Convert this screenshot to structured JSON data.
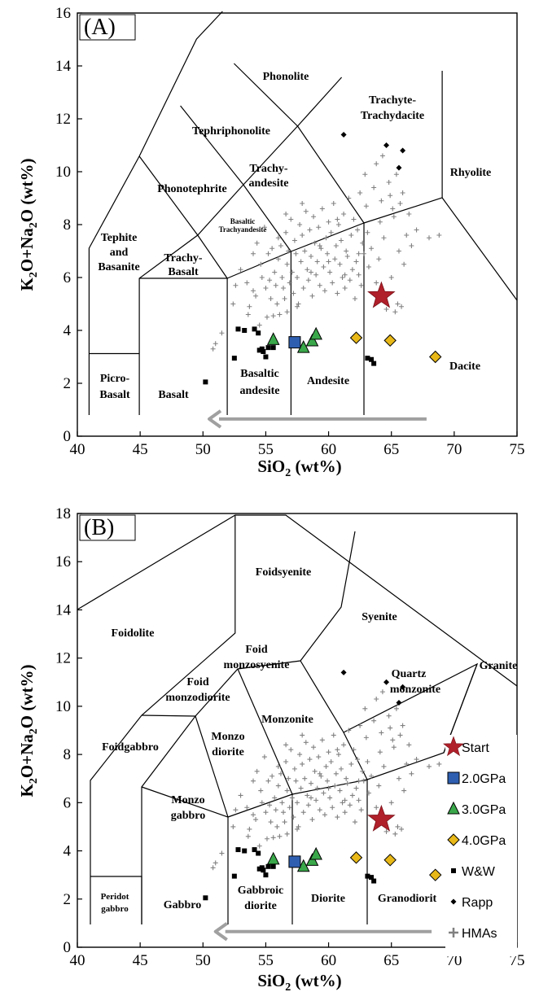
{
  "chart_data": [
    {
      "type": "scatter",
      "panel_label": "(A)",
      "xlabel": "SiO2 (wt%)",
      "ylabel": "K2O+Na2O (wt%)",
      "xlim": [
        40,
        75
      ],
      "ylim": [
        0,
        16
      ],
      "xticks": [
        40,
        45,
        50,
        55,
        60,
        65,
        70,
        75
      ],
      "yticks": [
        0,
        2,
        4,
        6,
        8,
        10,
        12,
        14,
        16
      ],
      "field_labels": [
        "Phonolite",
        "Trachyte-",
        "Trachydacite",
        "Tephriphonolite",
        "Rhyolite",
        "Phonotephrite",
        "Trachy-",
        "andesite",
        "Basaltic",
        "Trachyandesite",
        "Tephite",
        "and",
        "Basanite",
        "Trachy-",
        "Basalt",
        "Basaltic",
        "andesite",
        "Andesite",
        "Dacite",
        "Picro-",
        "Basalt",
        "Basalt"
      ],
      "arrow": {
        "from": [
          67.8,
          0.65
        ],
        "to": [
          50.5,
          0.65
        ]
      }
    },
    {
      "type": "scatter",
      "panel_label": "(B)",
      "xlabel": "SiO2 (wt%)",
      "ylabel": "K2O+Na2O (wt%)",
      "xlim": [
        40,
        75
      ],
      "ylim": [
        0,
        18
      ],
      "xticks": [
        40,
        45,
        50,
        55,
        60,
        65,
        70,
        75
      ],
      "yticks": [
        0,
        2,
        4,
        6,
        8,
        10,
        12,
        14,
        16,
        18
      ],
      "field_labels": [
        "Foidsyenite",
        "Foidolite",
        "Syenite",
        "Granite",
        "Foid",
        "monzosyenite",
        "Quartz",
        "monzonite",
        "Foid",
        "monzodiorite",
        "Monzonite",
        "Foidgabbro",
        "Monzo",
        "diorite",
        "Monzo",
        "gabbro",
        "Peridot",
        "gabbro",
        "Gabbro",
        "Gabbroic",
        "diorite",
        "Diorite",
        "Granodiorit"
      ],
      "legend": {
        "placement": "right",
        "entries": [
          "Start",
          "2.0GPa",
          "3.0GPa",
          "4.0GPa",
          "W&W",
          "Rapp",
          "HMAs"
        ]
      },
      "arrow": {
        "from": [
          68.2,
          0.65
        ],
        "to": [
          51.0,
          0.65
        ]
      }
    }
  ],
  "series": {
    "start": {
      "name": "Start",
      "color": "#b0202a",
      "points": [
        [
          64.2,
          5.3
        ]
      ]
    },
    "gpa2": {
      "name": "2.0GPa",
      "color": "#2e5eb0",
      "points": [
        [
          57.3,
          3.55
        ]
      ]
    },
    "gpa3": {
      "name": "3.0GPa",
      "color": "#3aa84a",
      "points": [
        [
          55.6,
          3.65
        ],
        [
          58.0,
          3.35
        ],
        [
          58.7,
          3.6
        ],
        [
          59.0,
          3.85
        ]
      ]
    },
    "gpa4": {
      "name": "4.0GPa",
      "color": "#e8b818",
      "points": [
        [
          62.2,
          3.72
        ],
        [
          64.9,
          3.62
        ],
        [
          68.5,
          3.0
        ]
      ]
    },
    "ww": {
      "name": "W&W",
      "color": "#000000",
      "points": [
        [
          50.2,
          2.05
        ],
        [
          52.5,
          2.95
        ],
        [
          52.8,
          4.05
        ],
        [
          53.3,
          4.0
        ],
        [
          54.1,
          4.05
        ],
        [
          54.4,
          3.9
        ],
        [
          54.5,
          3.25
        ],
        [
          54.7,
          3.3
        ],
        [
          54.8,
          3.2
        ],
        [
          55.0,
          3.0
        ],
        [
          55.2,
          3.35
        ],
        [
          55.6,
          3.35
        ],
        [
          63.1,
          2.95
        ],
        [
          63.4,
          2.9
        ],
        [
          63.6,
          2.75
        ]
      ]
    },
    "rapp": {
      "name": "Rapp",
      "color": "#000000",
      "points": [
        [
          61.2,
          11.4
        ],
        [
          64.6,
          11.0
        ],
        [
          65.9,
          10.8
        ],
        [
          65.6,
          10.15
        ]
      ]
    },
    "hmas": {
      "name": "HMAs",
      "color": "#808080",
      "points": [
        [
          50.8,
          3.3
        ],
        [
          51.0,
          3.5
        ],
        [
          51.5,
          3.9
        ],
        [
          52.4,
          5.0
        ],
        [
          52.6,
          5.7
        ],
        [
          53.0,
          6.3
        ],
        [
          53.5,
          5.8
        ],
        [
          53.6,
          4.6
        ],
        [
          53.7,
          4.9
        ],
        [
          54.0,
          5.5
        ],
        [
          54.0,
          6.9
        ],
        [
          54.3,
          7.3
        ],
        [
          54.5,
          4.2
        ],
        [
          54.6,
          6.5
        ],
        [
          54.7,
          6.0
        ],
        [
          54.9,
          7.9
        ],
        [
          55.0,
          5.6
        ],
        [
          55.1,
          4.5
        ],
        [
          55.2,
          6.9
        ],
        [
          55.4,
          5.2
        ],
        [
          55.5,
          7.1
        ],
        [
          55.6,
          4.55
        ],
        [
          55.7,
          6.2
        ],
        [
          55.8,
          5.7
        ],
        [
          55.9,
          5.0
        ],
        [
          56.0,
          7.5
        ],
        [
          56.0,
          6.7
        ],
        [
          56.1,
          4.6
        ],
        [
          56.2,
          7.2
        ],
        [
          56.3,
          6.0
        ],
        [
          56.4,
          5.6
        ],
        [
          56.5,
          5.2
        ],
        [
          56.6,
          7.7
        ],
        [
          56.7,
          6.5
        ],
        [
          56.8,
          7.0
        ],
        [
          56.9,
          5.8
        ],
        [
          57.0,
          8.2
        ],
        [
          57.1,
          6.2
        ],
        [
          57.2,
          5.4
        ],
        [
          57.3,
          7.4
        ],
        [
          57.4,
          6.9
        ],
        [
          57.5,
          6.0
        ],
        [
          57.6,
          5.0
        ],
        [
          57.7,
          8.0
        ],
        [
          57.8,
          6.6
        ],
        [
          57.9,
          7.6
        ],
        [
          58.0,
          5.6
        ],
        [
          58.1,
          7.0
        ],
        [
          58.2,
          8.5
        ],
        [
          58.3,
          6.3
        ],
        [
          58.4,
          5.9
        ],
        [
          58.5,
          7.8
        ],
        [
          58.6,
          6.8
        ],
        [
          58.7,
          5.3
        ],
        [
          58.8,
          8.3
        ],
        [
          58.9,
          7.3
        ],
        [
          59.0,
          6.1
        ],
        [
          59.1,
          6.6
        ],
        [
          59.2,
          7.9
        ],
        [
          59.3,
          5.7
        ],
        [
          59.4,
          7.1
        ],
        [
          59.5,
          8.6
        ],
        [
          59.6,
          6.4
        ],
        [
          59.7,
          5.5
        ],
        [
          59.8,
          7.5
        ],
        [
          59.9,
          6.9
        ],
        [
          60.0,
          8.1
        ],
        [
          60.1,
          6.2
        ],
        [
          60.2,
          7.7
        ],
        [
          60.3,
          5.8
        ],
        [
          60.4,
          8.8
        ],
        [
          60.5,
          6.7
        ],
        [
          60.6,
          7.2
        ],
        [
          60.7,
          5.4
        ],
        [
          60.8,
          8.0
        ],
        [
          60.9,
          6.5
        ],
        [
          61.0,
          7.4
        ],
        [
          61.1,
          6.0
        ],
        [
          61.2,
          8.4
        ],
        [
          61.3,
          5.6
        ],
        [
          61.4,
          7.0
        ],
        [
          61.5,
          6.8
        ],
        [
          61.6,
          9.0
        ],
        [
          61.7,
          5.9
        ],
        [
          61.8,
          7.6
        ],
        [
          61.9,
          6.3
        ],
        [
          62.0,
          8.2
        ],
        [
          62.1,
          5.2
        ],
        [
          62.2,
          6.6
        ],
        [
          62.3,
          7.8
        ],
        [
          62.4,
          6.1
        ],
        [
          62.5,
          9.2
        ],
        [
          62.6,
          5.7
        ],
        [
          62.7,
          7.3
        ],
        [
          62.8,
          6.9
        ],
        [
          63.0,
          8.7
        ],
        [
          63.2,
          6.4
        ],
        [
          63.4,
          7.1
        ],
        [
          63.6,
          9.4
        ],
        [
          63.8,
          5.8
        ],
        [
          64.0,
          6.7
        ],
        [
          64.2,
          8.9
        ],
        [
          64.4,
          7.5
        ],
        [
          64.6,
          4.8
        ],
        [
          64.8,
          9.6
        ],
        [
          65.0,
          6.0
        ],
        [
          65.2,
          8.3
        ],
        [
          65.3,
          4.7
        ],
        [
          65.4,
          9.9
        ],
        [
          65.5,
          5.0
        ],
        [
          65.6,
          7.0
        ],
        [
          65.7,
          8.8
        ],
        [
          65.8,
          4.9
        ],
        [
          65.9,
          9.2
        ],
        [
          66.0,
          6.5
        ],
        [
          66.2,
          7.6
        ],
        [
          66.4,
          8.4
        ],
        [
          66.6,
          7.2
        ],
        [
          67.0,
          7.8
        ],
        [
          68.0,
          7.5
        ],
        [
          68.8,
          7.6
        ],
        [
          54.2,
          5.3
        ],
        [
          55.3,
          5.9
        ],
        [
          56.7,
          4.7
        ],
        [
          57.5,
          4.9
        ],
        [
          58.6,
          6.2
        ],
        [
          60.0,
          6.6
        ],
        [
          61.3,
          6.1
        ],
        [
          62.4,
          6.9
        ],
        [
          63.1,
          7.7
        ],
        [
          64.1,
          8.1
        ],
        [
          59.3,
          7.2
        ],
        [
          60.7,
          8.2
        ],
        [
          57.9,
          8.8
        ],
        [
          56.6,
          8.4
        ],
        [
          62.9,
          9.9
        ],
        [
          63.8,
          10.3
        ],
        [
          64.3,
          10.6
        ],
        [
          64.9,
          9.1
        ],
        [
          65.1,
          8.6
        ]
      ]
    }
  },
  "legend_markers": {
    "start": "star-icon",
    "gpa2": "square-icon",
    "gpa3": "triangle-icon",
    "gpa4": "diamond-icon",
    "ww": "small-square-icon",
    "rapp": "small-diamond-icon",
    "hmas": "plus-icon"
  }
}
